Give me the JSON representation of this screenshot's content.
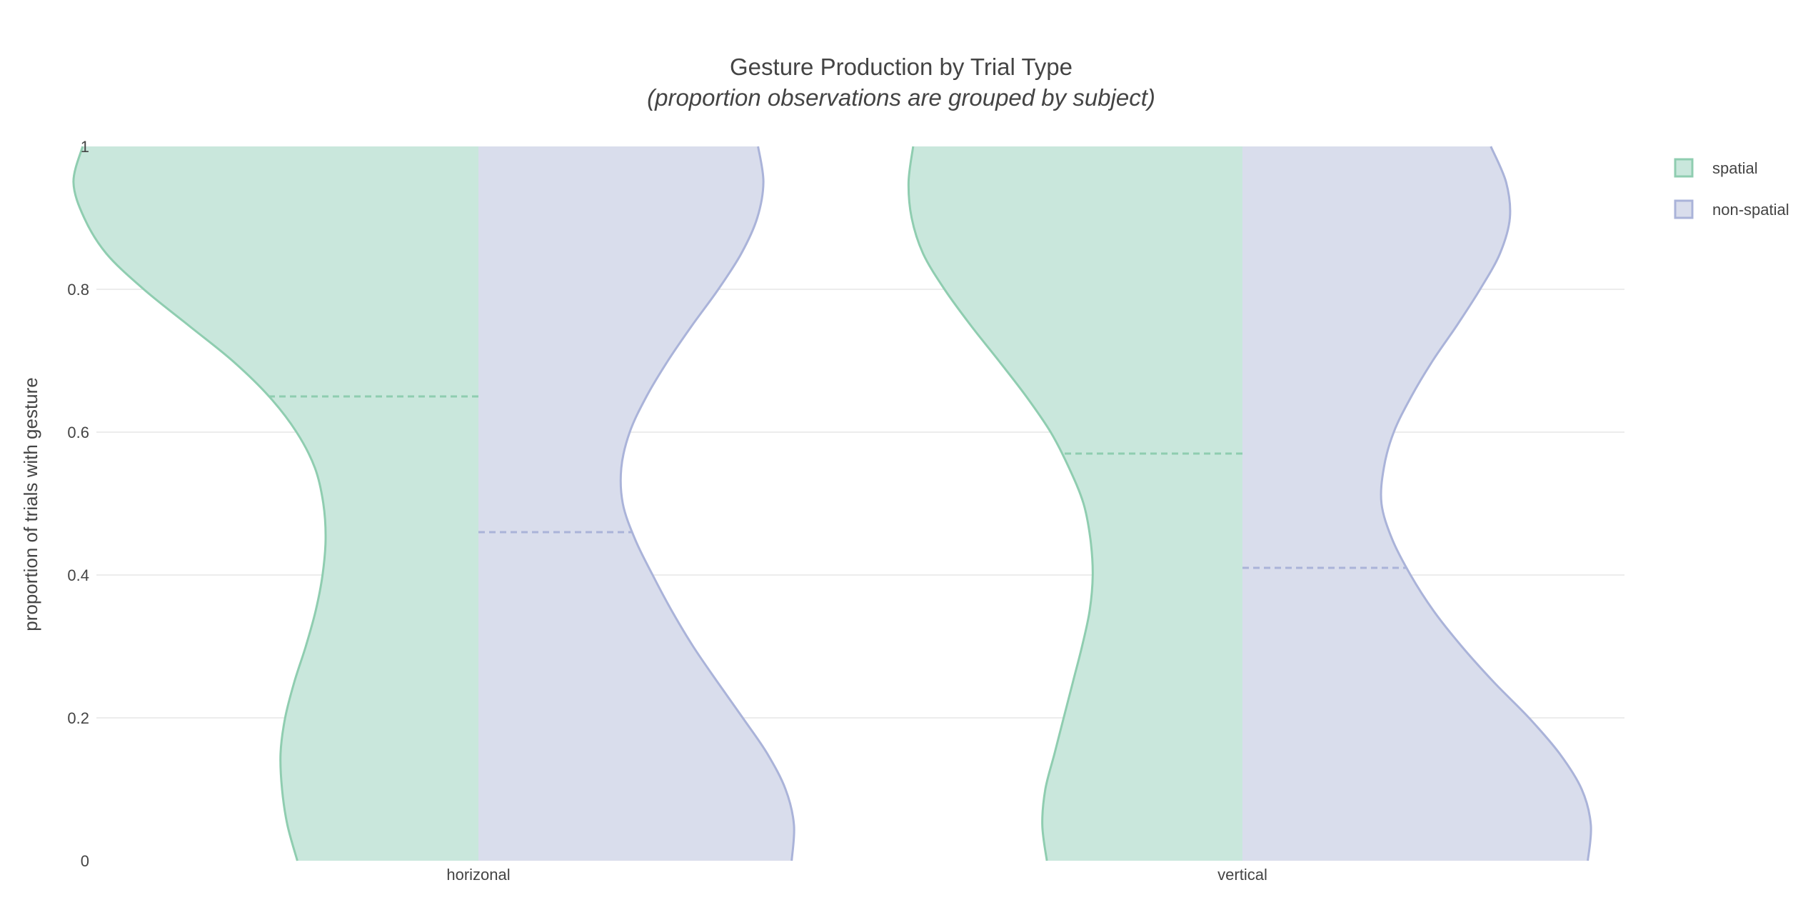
{
  "chart_data": {
    "type": "violin",
    "title": "Gesture Production by Trial Type",
    "subtitle": "(proportion observations are grouped by subject)",
    "xlabel": "",
    "ylabel": "proportion of trials with gesture",
    "categories": [
      "horizonal",
      "vertical"
    ],
    "ylim": [
      0,
      1
    ],
    "yticks": [
      "0",
      "0.2",
      "0.4",
      "0.6",
      "0.8",
      "1"
    ],
    "grid": true,
    "legend_position": "top-right",
    "series": [
      {
        "name": "spatial",
        "side": "left",
        "line_color": "#8fcdb0",
        "fill_color": "#c9e7dc",
        "medians": [
          0.65,
          0.57
        ],
        "profiles": [
          [
            [
              0,
              0.237
            ],
            [
              0.05,
              0.25
            ],
            [
              0.1,
              0.257
            ],
            [
              0.15,
              0.259
            ],
            [
              0.2,
              0.253
            ],
            [
              0.25,
              0.241
            ],
            [
              0.3,
              0.226
            ],
            [
              0.35,
              0.213
            ],
            [
              0.4,
              0.204
            ],
            [
              0.45,
              0.2
            ],
            [
              0.5,
              0.203
            ],
            [
              0.55,
              0.214
            ],
            [
              0.6,
              0.238
            ],
            [
              0.65,
              0.274
            ],
            [
              0.7,
              0.322
            ],
            [
              0.75,
              0.38
            ],
            [
              0.8,
              0.438
            ],
            [
              0.85,
              0.487
            ],
            [
              0.9,
              0.516
            ],
            [
              0.95,
              0.53
            ],
            [
              1.0,
              0.518
            ]
          ],
          [
            [
              0,
              0.256
            ],
            [
              0.05,
              0.262
            ],
            [
              0.1,
              0.258
            ],
            [
              0.15,
              0.246
            ],
            [
              0.2,
              0.234
            ],
            [
              0.25,
              0.222
            ],
            [
              0.3,
              0.21
            ],
            [
              0.35,
              0.2
            ],
            [
              0.4,
              0.196
            ],
            [
              0.45,
              0.199
            ],
            [
              0.5,
              0.208
            ],
            [
              0.55,
              0.227
            ],
            [
              0.6,
              0.251
            ],
            [
              0.65,
              0.283
            ],
            [
              0.7,
              0.319
            ],
            [
              0.75,
              0.356
            ],
            [
              0.8,
              0.39
            ],
            [
              0.85,
              0.418
            ],
            [
              0.9,
              0.433
            ],
            [
              0.95,
              0.437
            ],
            [
              1.0,
              0.431
            ]
          ]
        ]
      },
      {
        "name": "non-spatial",
        "side": "right",
        "line_color": "#aab3d9",
        "fill_color": "#d9ddec",
        "medians": [
          0.46,
          0.41
        ],
        "profiles": [
          [
            [
              0,
              0.41
            ],
            [
              0.05,
              0.413
            ],
            [
              0.1,
              0.402
            ],
            [
              0.15,
              0.378
            ],
            [
              0.2,
              0.346
            ],
            [
              0.25,
              0.313
            ],
            [
              0.3,
              0.281
            ],
            [
              0.35,
              0.253
            ],
            [
              0.4,
              0.228
            ],
            [
              0.45,
              0.205
            ],
            [
              0.5,
              0.189
            ],
            [
              0.55,
              0.187
            ],
            [
              0.6,
              0.198
            ],
            [
              0.65,
              0.22
            ],
            [
              0.7,
              0.248
            ],
            [
              0.75,
              0.28
            ],
            [
              0.8,
              0.314
            ],
            [
              0.85,
              0.344
            ],
            [
              0.9,
              0.365
            ],
            [
              0.95,
              0.373
            ],
            [
              1.0,
              0.366
            ]
          ],
          [
            [
              0,
              0.452
            ],
            [
              0.05,
              0.456
            ],
            [
              0.1,
              0.444
            ],
            [
              0.15,
              0.415
            ],
            [
              0.2,
              0.375
            ],
            [
              0.25,
              0.329
            ],
            [
              0.3,
              0.287
            ],
            [
              0.35,
              0.25
            ],
            [
              0.4,
              0.22
            ],
            [
              0.45,
              0.196
            ],
            [
              0.5,
              0.182
            ],
            [
              0.55,
              0.185
            ],
            [
              0.6,
              0.198
            ],
            [
              0.65,
              0.221
            ],
            [
              0.7,
              0.249
            ],
            [
              0.75,
              0.281
            ],
            [
              0.8,
              0.311
            ],
            [
              0.85,
              0.337
            ],
            [
              0.9,
              0.35
            ],
            [
              0.95,
              0.345
            ],
            [
              1.0,
              0.325
            ]
          ]
        ]
      }
    ]
  }
}
